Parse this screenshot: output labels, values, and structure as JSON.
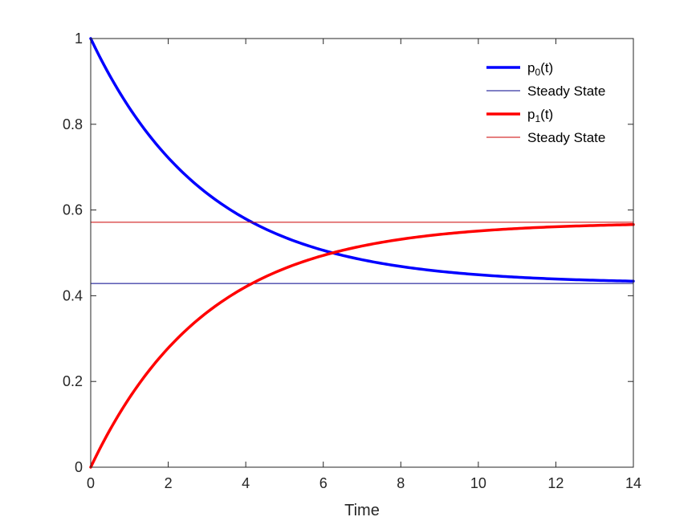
{
  "chart_data": {
    "type": "line",
    "title": "",
    "xlabel": "Time",
    "ylabel": "",
    "xlim": [
      0,
      14
    ],
    "ylim": [
      0,
      1
    ],
    "xticks": [
      "0",
      "2",
      "4",
      "6",
      "8",
      "10",
      "12",
      "14"
    ],
    "yticks": [
      "0",
      "0.2",
      "0.4",
      "0.6",
      "0.8",
      "1"
    ],
    "grid": false,
    "legend_position": "top-right",
    "series": [
      {
        "name": "p0(t)",
        "legend": {
          "base": "p",
          "subscript": "0",
          "suffix": "(t)"
        },
        "color": "#0000ff",
        "style": "thick",
        "model": {
          "kind": "exponential",
          "start": 1.0,
          "steady": 0.4286,
          "rate": 0.3333
        },
        "x": [
          0,
          1,
          2,
          3,
          4,
          5,
          6,
          7,
          8,
          9,
          10,
          11,
          12,
          13,
          14
        ],
        "values": [
          1.0,
          0.838,
          0.721,
          0.639,
          0.579,
          0.536,
          0.506,
          0.484,
          0.468,
          0.457,
          0.449,
          0.443,
          0.439,
          0.436,
          0.434
        ]
      },
      {
        "name": "Steady State",
        "legend": {
          "base": "Steady State",
          "subscript": "",
          "suffix": ""
        },
        "color": "#00008b",
        "style": "thin",
        "x": [
          0,
          14
        ],
        "values": [
          0.4286,
          0.4286
        ]
      },
      {
        "name": "p1(t)",
        "legend": {
          "base": "p",
          "subscript": "1",
          "suffix": "(t)"
        },
        "color": "#ff0000",
        "style": "thick",
        "model": {
          "kind": "exponential",
          "start": 0.0,
          "steady": 0.5714,
          "rate": 0.3333
        },
        "x": [
          0,
          1,
          2,
          3,
          4,
          5,
          6,
          7,
          8,
          9,
          10,
          11,
          12,
          13,
          14
        ],
        "values": [
          0.0,
          0.162,
          0.279,
          0.361,
          0.421,
          0.464,
          0.494,
          0.516,
          0.532,
          0.543,
          0.551,
          0.557,
          0.561,
          0.564,
          0.566
        ]
      },
      {
        "name": "Steady State",
        "legend": {
          "base": "Steady State",
          "subscript": "",
          "suffix": ""
        },
        "color": "#cc0000",
        "style": "thin",
        "x": [
          0,
          14
        ],
        "values": [
          0.5714,
          0.5714
        ]
      }
    ]
  }
}
